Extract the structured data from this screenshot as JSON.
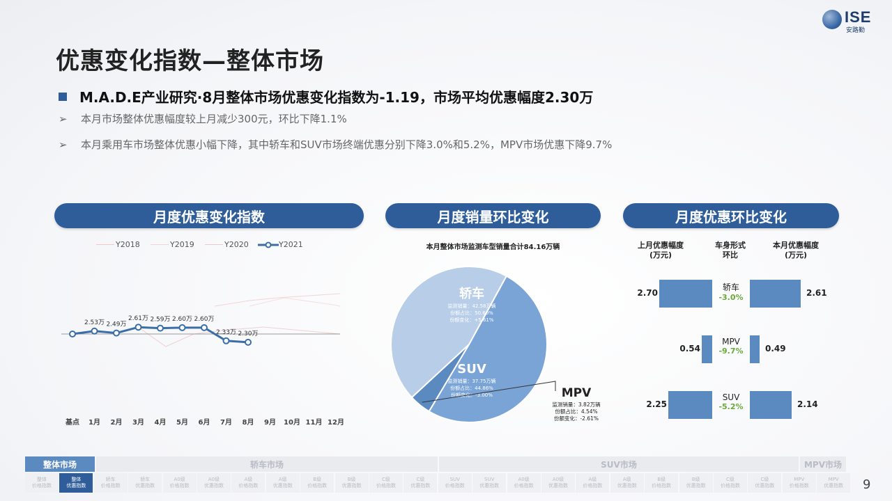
{
  "logo": {
    "brand": "ISE",
    "sub": "安路勤"
  },
  "page_title": "优惠变化指数—整体市场",
  "headline": "M.A.D.E产业研究·8月整体市场优惠变化指数为-1.19，市场平均优惠幅度2.30万",
  "bullets": [
    "本月市场整体优惠幅度较上月减少300元，环比下降1.1%",
    "本月乘用车市场整体优惠小幅下降，其中轿车和SUV市场终端优惠分别下降3.0%和5.2%，MPV市场优惠下降9.7%"
  ],
  "bullet_icon": "arrow-bullet-icon",
  "sections": {
    "index": "月度优惠变化指数",
    "sales": "月度销量环比变化",
    "discount": "月度优惠环比变化"
  },
  "legend": [
    "Y2018",
    "Y2019",
    "Y2020",
    "Y2021"
  ],
  "chart_data": [
    {
      "type": "line",
      "title": "",
      "categories": [
        "基点",
        "1月",
        "2月",
        "3月",
        "4月",
        "5月",
        "6月",
        "7月",
        "8月",
        "9月",
        "10月",
        "11月",
        "12月"
      ],
      "series": [
        {
          "name": "Y2021",
          "values": [
            2.47,
            2.53,
            2.49,
            2.61,
            2.59,
            2.6,
            2.6,
            2.33,
            2.3,
            null,
            null,
            null,
            null
          ],
          "labels": [
            "",
            "2.53万",
            "2.49万",
            "2.61万",
            "2.59万",
            "2.60万",
            "2.60万",
            "2.33万",
            "2.30万",
            "",
            "",
            "",
            ""
          ]
        }
      ],
      "colors": {
        "Y2018": "#f0c8c8",
        "Y2019": "#f3d3d3",
        "Y2020": "#e8caca",
        "Y2021": "#3a6ea8"
      }
    },
    {
      "type": "pie",
      "title": "本月整体市场监测车型销量合计84.16万辆",
      "slices": [
        {
          "name": "轿车",
          "value": 50.6,
          "color": "#7aa4d6",
          "details": [
            "监测销量：42.58万辆",
            "份额占比：50.60%",
            "份额变化：+5.61%"
          ]
        },
        {
          "name": "SUV",
          "value": 44.86,
          "color": "#b7cde8",
          "details": [
            "监测销量：37.75万辆",
            "份额占比：44.86%",
            "份额变化：-3.00%"
          ]
        },
        {
          "name": "MPV",
          "value": 4.54,
          "color": "#5b8ac0",
          "details": [
            "监测销量：3.82万辆",
            "份额占比：4.54%",
            "份额变化：-2.61%"
          ]
        }
      ]
    },
    {
      "type": "bar",
      "title": "",
      "headers": {
        "left": "上月优惠幅度\n(万元)",
        "mid": "车身形式\n环比",
        "right": "本月优惠幅度\n(万元)"
      },
      "categories": [
        "轿车",
        "MPV",
        "SUV"
      ],
      "changes": [
        "-3.0%",
        "-9.7%",
        "-5.2%"
      ],
      "series": [
        {
          "name": "上月优惠幅度",
          "values": [
            2.7,
            0.54,
            2.25
          ]
        },
        {
          "name": "本月优惠幅度",
          "values": [
            2.61,
            0.49,
            2.14
          ]
        }
      ]
    }
  ],
  "bottom_nav": {
    "groups": [
      {
        "label": "整体市场",
        "active": true
      },
      {
        "label": "轿车市场",
        "active": false
      },
      {
        "label": "SUV市场",
        "active": false
      },
      {
        "label": "MPV市场",
        "active": false
      }
    ],
    "items": [
      {
        "label": "整体\n价格指数",
        "active": false
      },
      {
        "label": "整体\n优惠指数",
        "active": true
      },
      {
        "label": "轿车\n价格指数",
        "active": false
      },
      {
        "label": "轿车\n优惠指数",
        "active": false
      },
      {
        "label": "A0级\n价格指数",
        "active": false
      },
      {
        "label": "A0级\n优惠指数",
        "active": false
      },
      {
        "label": "A级\n价格指数",
        "active": false
      },
      {
        "label": "A级\n优惠指数",
        "active": false
      },
      {
        "label": "B级\n价格指数",
        "active": false
      },
      {
        "label": "B级\n优惠指数",
        "active": false
      },
      {
        "label": "C级\n价格指数",
        "active": false
      },
      {
        "label": "C级\n优惠指数",
        "active": false
      },
      {
        "label": "SUV\n价格指数",
        "active": false
      },
      {
        "label": "SUV\n优惠指数",
        "active": false
      },
      {
        "label": "A0级\n价格指数",
        "active": false
      },
      {
        "label": "A0级\n优惠指数",
        "active": false
      },
      {
        "label": "A级\n价格指数",
        "active": false
      },
      {
        "label": "A级\n优惠指数",
        "active": false
      },
      {
        "label": "B级\n价格指数",
        "active": false
      },
      {
        "label": "B级\n优惠指数",
        "active": false
      },
      {
        "label": "C级\n价格指数",
        "active": false
      },
      {
        "label": "C级\n优惠指数",
        "active": false
      },
      {
        "label": "MPV\n价格指数",
        "active": false
      },
      {
        "label": "MPV\n优惠指数",
        "active": false
      }
    ]
  },
  "page_number": "9"
}
